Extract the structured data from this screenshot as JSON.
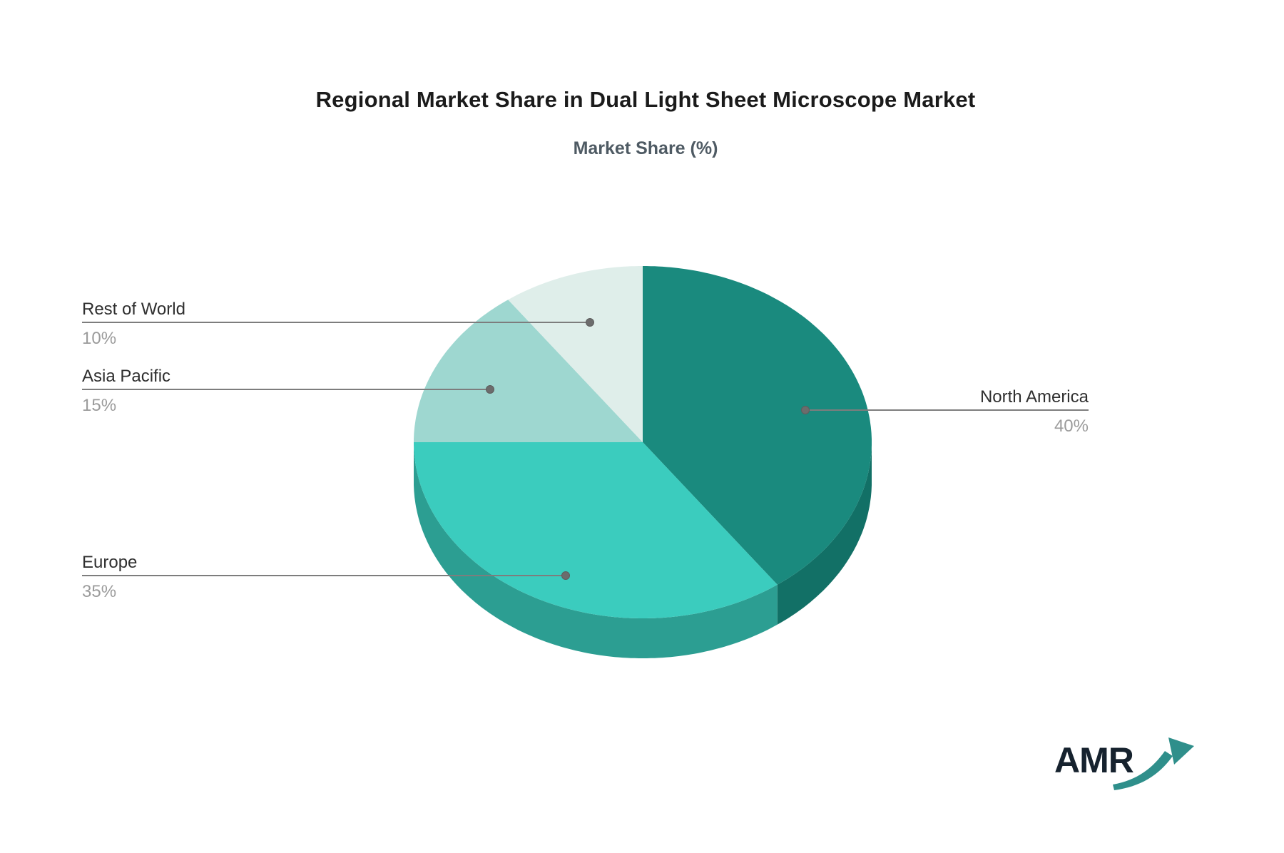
{
  "page": {
    "background_color": "#ffffff"
  },
  "header": {
    "title": "Regional Market Share in Dual Light Sheet Microscope Market",
    "subtitle": "Market Share (%)"
  },
  "chart_data": {
    "type": "pie",
    "title": "Regional Market Share in Dual Light Sheet Microscope Market",
    "subtitle": "Market Share (%)",
    "unit": "%",
    "style": "3d-pie",
    "start_angle_deg": 0,
    "direction": "clockwise",
    "legend": "none",
    "label_style": "leader-lines",
    "categories": [
      "North America",
      "Europe",
      "Asia Pacific",
      "Rest of World"
    ],
    "values": [
      40,
      35,
      15,
      10
    ],
    "slices": [
      {
        "name": "North America",
        "value": 40,
        "display": "40%",
        "color": "#1A8A7E",
        "side_color": "#127066"
      },
      {
        "name": "Europe",
        "value": 35,
        "display": "35%",
        "color": "#3BCCBE",
        "side_color": "#2C9E92"
      },
      {
        "name": "Asia Pacific",
        "value": 15,
        "display": "15%",
        "color": "#9ED7D0",
        "side_color": "#7FB8B1"
      },
      {
        "name": "Rest of World",
        "value": 10,
        "display": "10%",
        "color": "#DFEEEA",
        "side_color": "#BFD4CF"
      }
    ],
    "leader_line_color": "#7d7d7d",
    "leader_dot_color": "#6c6c6c"
  },
  "logo": {
    "text": "AMR",
    "arrow_color": "#2F8F8B"
  }
}
